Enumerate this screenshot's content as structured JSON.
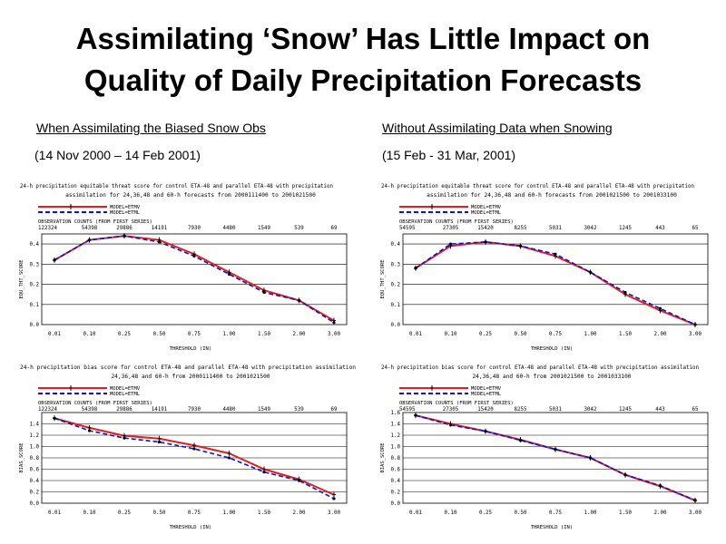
{
  "slide": {
    "title_line1": "Assimilating ‘Snow’ Has Little Impact on",
    "title_line2": "Quality of Daily Precipitation Forecasts",
    "left_heading": "When Assimilating the Biased Snow Obs",
    "left_period": " (14 Nov 2000 – 14 Feb 2001)",
    "right_heading": "Without Assimilating Data when Snowing ",
    "right_period": "(15 Feb - 31 Mar, 2001)"
  },
  "colors": {
    "model_etmv": "#e02020",
    "model_etml": "#1010cc"
  },
  "chart_data": [
    {
      "type": "line",
      "title": "24-h precipitation equitable threat score for control ETA-48 and parallel ETA-48 with precipitation",
      "subtitle": "assimilation for 24,36,48 and 60-h forecasts from 2000111400 to 2001021500",
      "xlabel": "THRESHOLD (IN)",
      "ylabel": "EQU_THT_SCORE",
      "categories": [
        "0.01",
        "0.10",
        "0.25",
        "0.50",
        "0.75",
        "1.00",
        "1.50",
        "2.00",
        "3.00"
      ],
      "obs_label": "OBSERVATION COUNTS (FROM FIRST SERIES)",
      "obs_counts": [
        "122324",
        "54398",
        "29886",
        "14191",
        "7930",
        "4480",
        "1549",
        "539",
        "69"
      ],
      "ylim": [
        0,
        0.45
      ],
      "yticks": [
        "0.0",
        "0.1",
        "0.2",
        "0.3",
        "0.4"
      ],
      "series": [
        {
          "name": "MODEL=ETMV",
          "values": [
            0.32,
            0.42,
            0.44,
            0.42,
            0.35,
            0.26,
            0.17,
            0.12,
            0.02
          ]
        },
        {
          "name": "MODEL=ETML",
          "values": [
            0.32,
            0.42,
            0.44,
            0.41,
            0.34,
            0.25,
            0.16,
            0.12,
            0.01
          ]
        }
      ]
    },
    {
      "type": "line",
      "title": "24-h precipitation equitable threat score for control ETA-48 and parallel ETA-48 with precipitation",
      "subtitle": "assimilation for 24,36,48 and 60-h forecasts from 2001021500 to 2001033100",
      "xlabel": "THRESHOLD (IN)",
      "ylabel": "EQU_THT_SCORE",
      "categories": [
        "0.01",
        "0.10",
        "0.25",
        "0.50",
        "0.75",
        "1.00",
        "1.50",
        "2.00",
        "3.00"
      ],
      "obs_label": "OBSERVATION COUNTS (FROM FIRST SERIES)",
      "obs_counts": [
        "54595",
        "27305",
        "15420",
        "8255",
        "5031",
        "3042",
        "1245",
        "443",
        "65"
      ],
      "ylim": [
        0,
        0.45
      ],
      "yticks": [
        "0.0",
        "0.1",
        "0.2",
        "0.3",
        "0.4"
      ],
      "series": [
        {
          "name": "MODEL=ETMV",
          "values": [
            0.28,
            0.39,
            0.41,
            0.39,
            0.34,
            0.26,
            0.15,
            0.07,
            0.0
          ]
        },
        {
          "name": "MODEL=ETML",
          "values": [
            0.28,
            0.4,
            0.41,
            0.39,
            0.35,
            0.26,
            0.16,
            0.08,
            0.0
          ]
        }
      ]
    },
    {
      "type": "line",
      "title": "24-h precipitation bias score for control ETA-48 and parallel ETA-48 with precipitation assimilation",
      "subtitle": "24,36,48 and 60-h from 2000111400 to 2001021500",
      "xlabel": "THRESHOLD (IN)",
      "ylabel": "BIAS_SCORE",
      "categories": [
        "0.01",
        "0.10",
        "0.25",
        "0.50",
        "0.75",
        "1.00",
        "1.50",
        "2.00",
        "3.00"
      ],
      "obs_label": "OBSERVATION COUNTS (FROM FIRST SERIES)",
      "obs_counts": [
        "122324",
        "54398",
        "29886",
        "14191",
        "7930",
        "4480",
        "1549",
        "539",
        "69"
      ],
      "ylim": [
        0,
        1.6
      ],
      "yticks": [
        "0.0",
        "0.2",
        "0.4",
        "0.6",
        "0.8",
        "1.0",
        "1.2",
        "1.4"
      ],
      "series": [
        {
          "name": "MODEL=ETMV",
          "values": [
            1.5,
            1.33,
            1.19,
            1.14,
            1.02,
            0.88,
            0.6,
            0.42,
            0.15
          ]
        },
        {
          "name": "MODEL=ETML",
          "values": [
            1.5,
            1.28,
            1.15,
            1.08,
            0.96,
            0.8,
            0.55,
            0.4,
            0.08
          ]
        }
      ]
    },
    {
      "type": "line",
      "title": "24-h precipitation bias score for control ETA-48 and parallel ETA-48 with precipitation assimilation",
      "subtitle": "24,36,48 and 60-h from 2001021500 to 2001033100",
      "xlabel": "THRESHOLD (IN)",
      "ylabel": "BIAS_SCORE",
      "categories": [
        "0.01",
        "0.10",
        "0.25",
        "0.50",
        "0.75",
        "1.00",
        "1.50",
        "2.00",
        "3.00"
      ],
      "obs_label": "OBSERVATION COUNTS (FROM FIRST SERIES)",
      "obs_counts": [
        "54595",
        "27305",
        "15420",
        "8255",
        "5031",
        "3042",
        "1245",
        "443",
        "65"
      ],
      "ylim": [
        0,
        1.6
      ],
      "yticks": [
        "0.0",
        "0.2",
        "0.4",
        "0.6",
        "0.8",
        "1.0",
        "1.2",
        "1.4",
        "1.6"
      ],
      "series": [
        {
          "name": "MODEL=ETMV",
          "values": [
            1.55,
            1.4,
            1.27,
            1.12,
            0.95,
            0.8,
            0.5,
            0.3,
            0.05
          ]
        },
        {
          "name": "MODEL=ETML",
          "values": [
            1.55,
            1.38,
            1.27,
            1.11,
            0.95,
            0.8,
            0.5,
            0.31,
            0.05
          ]
        }
      ]
    }
  ]
}
